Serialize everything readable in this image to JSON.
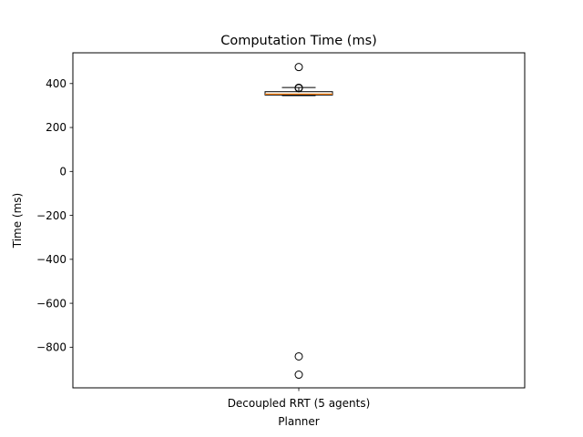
{
  "chart_data": {
    "type": "box",
    "title": "Computation Time (ms)",
    "xlabel": "Planner",
    "ylabel": "Time (ms)",
    "categories": [
      "Decoupled RRT (5 agents)"
    ],
    "ylim": [
      -985,
      540
    ],
    "yticks": [
      {
        "value": 400,
        "label": "400"
      },
      {
        "value": 200,
        "label": "200"
      },
      {
        "value": 0,
        "label": "0"
      },
      {
        "value": -200,
        "label": "−200"
      },
      {
        "value": -400,
        "label": "−400"
      },
      {
        "value": -600,
        "label": "−600"
      },
      {
        "value": -800,
        "label": "−800"
      }
    ],
    "series": [
      {
        "whisker_low": 345,
        "q1": 348,
        "median": 352,
        "q3": 363,
        "whisker_high": 382,
        "outliers": [
          475,
          381,
          379,
          -842,
          -925
        ]
      }
    ],
    "grid": false,
    "colors": {
      "box": "#000000",
      "median": "#ff7f0e",
      "outlier": "#000000"
    }
  }
}
